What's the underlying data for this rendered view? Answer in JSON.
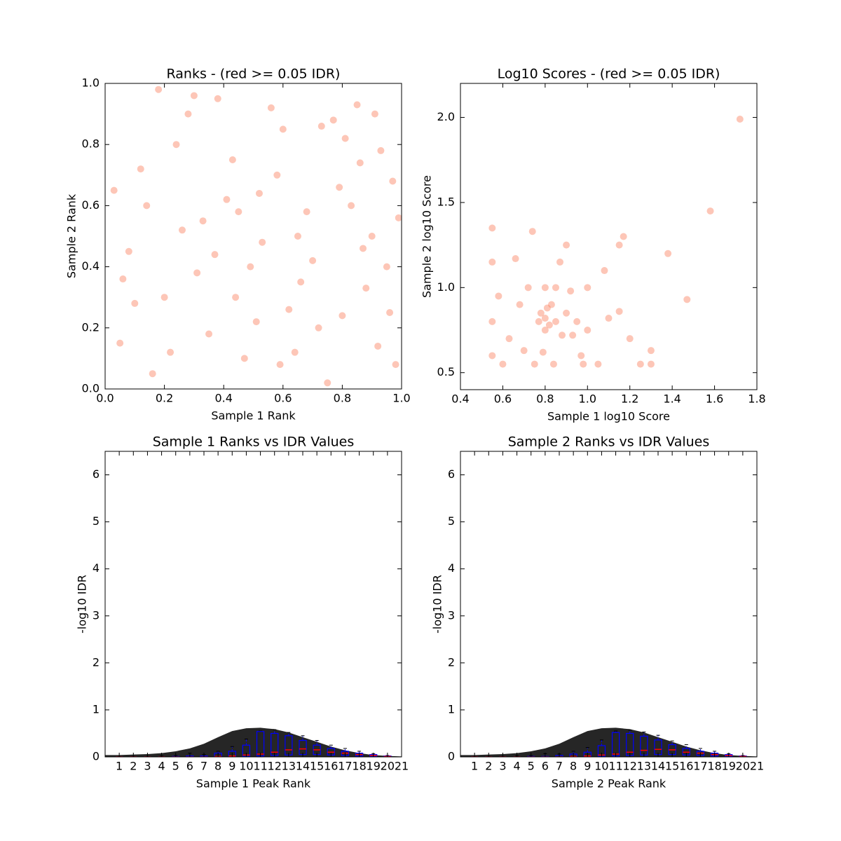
{
  "chart_data": [
    {
      "type": "scatter",
      "title": "Ranks - (red >= 0.05 IDR)",
      "x_label": "Sample 1 Rank",
      "y_label": "Sample 2 Rank",
      "color": "#fa8060",
      "series": [
        {
          "x": [
            0.05,
            0.12,
            0.2,
            0.28,
            0.33,
            0.41,
            0.47,
            0.53,
            0.6,
            0.66,
            0.72,
            0.79,
            0.85,
            0.9,
            0.96,
            0.08,
            0.16,
            0.24,
            0.31,
            0.38,
            0.45,
            0.51,
            0.58,
            0.64,
            0.7,
            0.77,
            0.83,
            0.88,
            0.93,
            0.98,
            0.03,
            0.1,
            0.18,
            0.26,
            0.35,
            0.43,
            0.49,
            0.56,
            0.62,
            0.68,
            0.75,
            0.81,
            0.87,
            0.92,
            0.97,
            0.06,
            0.14,
            0.22,
            0.3,
            0.37,
            0.44,
            0.52,
            0.59,
            0.65,
            0.73,
            0.8,
            0.86,
            0.91,
            0.95,
            0.99
          ],
          "values": [
            0.15,
            0.72,
            0.3,
            0.9,
            0.55,
            0.62,
            0.1,
            0.48,
            0.85,
            0.35,
            0.2,
            0.66,
            0.93,
            0.5,
            0.25,
            0.45,
            0.05,
            0.8,
            0.38,
            0.95,
            0.58,
            0.22,
            0.7,
            0.12,
            0.42,
            0.88,
            0.6,
            0.33,
            0.78,
            0.08,
            0.65,
            0.28,
            0.98,
            0.52,
            0.18,
            0.75,
            0.4,
            0.92,
            0.26,
            0.58,
            0.02,
            0.82,
            0.46,
            0.14,
            0.68,
            0.36,
            0.6,
            0.12,
            0.96,
            0.44,
            0.3,
            0.64,
            0.08,
            0.5,
            0.86,
            0.24,
            0.74,
            0.9,
            0.4,
            0.56
          ]
        }
      ],
      "xlim": [
        0,
        1
      ],
      "xticks": [
        {
          "value": 0,
          "label": "0.0"
        },
        0.2,
        0.4,
        0.6,
        0.8,
        {
          "value": 1,
          "label": "1.0"
        }
      ],
      "ylim": [
        0,
        1
      ],
      "yticks": [
        {
          "value": 0,
          "label": "0.0"
        },
        0.2,
        0.4,
        0.6,
        0.8,
        {
          "value": 1,
          "label": "1.0"
        }
      ]
    },
    {
      "type": "scatter",
      "title": "Log10 Scores - (red >= 0.05 IDR)",
      "x_label": "Sample 1 log10 Score",
      "y_label": "Sample 2 log10 Score",
      "color": "#fa8060",
      "series": [
        {
          "x": [
            0.55,
            0.55,
            0.55,
            0.6,
            0.63,
            0.68,
            0.72,
            0.75,
            0.77,
            0.78,
            0.8,
            0.8,
            0.82,
            0.83,
            0.85,
            0.85,
            0.87,
            0.9,
            0.93,
            0.95,
            0.97,
            1.0,
            1.0,
            1.05,
            1.1,
            1.15,
            1.15,
            1.2,
            1.25,
            1.3,
            0.58,
            0.66,
            0.74,
            0.79,
            0.81,
            0.84,
            0.88,
            0.92,
            0.98,
            1.08,
            1.17,
            1.3,
            1.38,
            1.47,
            1.58,
            1.72,
            0.55,
            0.7,
            0.8,
            0.9
          ],
          "values": [
            0.6,
            0.8,
            1.15,
            0.55,
            0.7,
            0.9,
            1.0,
            0.55,
            0.8,
            0.85,
            0.75,
            0.82,
            0.78,
            0.9,
            0.8,
            1.0,
            1.15,
            0.85,
            0.72,
            0.8,
            0.6,
            0.75,
            1.0,
            0.55,
            0.82,
            0.86,
            1.25,
            0.7,
            0.55,
            0.63,
            0.95,
            1.17,
            1.33,
            0.62,
            0.88,
            0.55,
            0.72,
            0.98,
            0.55,
            1.1,
            1.3,
            0.55,
            1.2,
            0.93,
            1.45,
            1.99,
            1.35,
            0.63,
            1.0,
            1.25
          ]
        }
      ],
      "xlim": [
        0.4,
        1.8
      ],
      "xticks": [
        0.4,
        0.6,
        0.8,
        {
          "value": 1,
          "label": "1.0"
        },
        1.2,
        1.4,
        1.6,
        1.8
      ],
      "ylim": [
        0.4,
        2.2
      ],
      "yticks": [
        0.5,
        {
          "value": 1,
          "label": "1.0"
        },
        1.5,
        {
          "value": 2,
          "label": "2.0"
        }
      ]
    },
    {
      "type": "box",
      "title": "Sample 1 Ranks vs IDR Values",
      "x_label": "Sample 1 Peak Rank",
      "y_label": "-log10 IDR",
      "box_color": "#0000ff",
      "median_color": "#ff0000",
      "curve_color": "#000000",
      "x": [
        1,
        2,
        3,
        4,
        5,
        6,
        7,
        8,
        9,
        10,
        11,
        12,
        13,
        14,
        15,
        16,
        17,
        18,
        19,
        20
      ],
      "q1": [
        0,
        0,
        0,
        0,
        0,
        0,
        0,
        0,
        0,
        0.01,
        0.02,
        0.03,
        0.04,
        0.05,
        0.05,
        0.04,
        0.03,
        0.02,
        0.01,
        0
      ],
      "median": [
        0,
        0,
        0,
        0,
        0,
        0,
        0,
        0.01,
        0.02,
        0.04,
        0.06,
        0.1,
        0.15,
        0.17,
        0.15,
        0.1,
        0.08,
        0.05,
        0.03,
        0.01
      ],
      "q3": [
        0,
        0,
        0,
        0,
        0.01,
        0.02,
        0.02,
        0.08,
        0.12,
        0.25,
        0.54,
        0.5,
        0.45,
        0.35,
        0.25,
        0.18,
        0.12,
        0.08,
        0.05,
        0.02
      ],
      "whishi": [
        0.01,
        0.01,
        0.01,
        0.02,
        0.03,
        0.08,
        0.05,
        0.12,
        0.22,
        0.38,
        0.55,
        0.58,
        0.52,
        0.45,
        0.35,
        0.25,
        0.18,
        0.12,
        0.07,
        0.03
      ],
      "curve": {
        "x": [
          0,
          1,
          2,
          3,
          4,
          5,
          6,
          7,
          8,
          9,
          10,
          11,
          12,
          13,
          14,
          15,
          16,
          17,
          18,
          19,
          20,
          21
        ],
        "y": [
          0.04,
          0.04,
          0.05,
          0.06,
          0.08,
          0.12,
          0.18,
          0.28,
          0.42,
          0.55,
          0.61,
          0.62,
          0.59,
          0.52,
          0.42,
          0.32,
          0.22,
          0.14,
          0.08,
          0.04,
          0.02,
          0.01
        ]
      },
      "xlim": [
        0,
        21
      ],
      "xticks": [
        1,
        2,
        3,
        4,
        5,
        6,
        7,
        8,
        9,
        10,
        11,
        12,
        13,
        14,
        15,
        16,
        17,
        18,
        19,
        20,
        21
      ],
      "ylim": [
        0,
        6.5
      ],
      "yticks": [
        0,
        1,
        2,
        3,
        4,
        5,
        6
      ]
    },
    {
      "type": "box",
      "title": "Sample 2 Ranks vs IDR Values",
      "x_label": "Sample 2 Peak Rank",
      "y_label": "-log10 IDR",
      "box_color": "#0000ff",
      "median_color": "#ff0000",
      "curve_color": "#000000",
      "x": [
        1,
        2,
        3,
        4,
        5,
        6,
        7,
        8,
        9,
        10,
        11,
        12,
        13,
        14,
        15,
        16,
        17,
        18,
        19,
        20
      ],
      "q1": [
        0,
        0,
        0,
        0,
        0,
        0,
        0,
        0,
        0,
        0.01,
        0.02,
        0.03,
        0.04,
        0.05,
        0.05,
        0.04,
        0.03,
        0.02,
        0.01,
        0
      ],
      "median": [
        0,
        0,
        0,
        0,
        0,
        0,
        0,
        0.01,
        0.02,
        0.04,
        0.06,
        0.1,
        0.14,
        0.16,
        0.15,
        0.1,
        0.08,
        0.05,
        0.03,
        0.01
      ],
      "q3": [
        0,
        0,
        0,
        0,
        0.01,
        0.01,
        0.03,
        0.06,
        0.1,
        0.24,
        0.52,
        0.5,
        0.44,
        0.36,
        0.26,
        0.18,
        0.12,
        0.08,
        0.05,
        0.02
      ],
      "whishi": [
        0.01,
        0.01,
        0.01,
        0.02,
        0.03,
        0.07,
        0.06,
        0.12,
        0.2,
        0.36,
        0.55,
        0.57,
        0.53,
        0.46,
        0.34,
        0.26,
        0.18,
        0.12,
        0.07,
        0.03
      ],
      "curve": {
        "x": [
          0,
          1,
          2,
          3,
          4,
          5,
          6,
          7,
          8,
          9,
          10,
          11,
          12,
          13,
          14,
          15,
          16,
          17,
          18,
          19,
          20,
          21
        ],
        "y": [
          0.04,
          0.04,
          0.05,
          0.06,
          0.08,
          0.12,
          0.18,
          0.28,
          0.42,
          0.55,
          0.61,
          0.62,
          0.59,
          0.52,
          0.42,
          0.32,
          0.22,
          0.14,
          0.08,
          0.04,
          0.02,
          0.01
        ]
      },
      "xlim": [
        0,
        21
      ],
      "xticks": [
        1,
        2,
        3,
        4,
        5,
        6,
        7,
        8,
        9,
        10,
        11,
        12,
        13,
        14,
        15,
        16,
        17,
        18,
        19,
        20,
        21
      ],
      "ylim": [
        0,
        6.5
      ],
      "yticks": [
        0,
        1,
        2,
        3,
        4,
        5,
        6
      ]
    }
  ]
}
